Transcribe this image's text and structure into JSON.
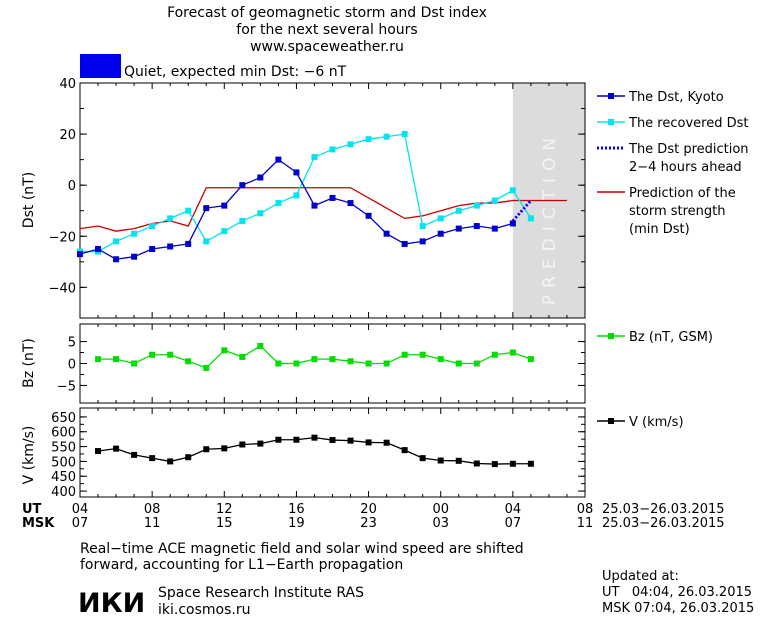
{
  "header": {
    "title_lines": [
      "Forecast of geomagnetic storm and Dst index",
      "for the next several hours",
      "www.spaceweather.ru"
    ],
    "status_text": "Quiet, expected min Dst: −6 nT",
    "status_color": "#0000ee"
  },
  "colors": {
    "dst_kyoto": "#0000cc",
    "recovered_dst": "#00e5ee",
    "dst_prediction": "#0000ff",
    "storm_strength": "#cc0000",
    "bz": "#00dd00",
    "v": "#000000",
    "prediction_zone": "#dcdcdc"
  },
  "prediction_label": "PREDICTION",
  "time_axis": {
    "ut_label": "UT",
    "msk_label": "MSK",
    "ut_ticks": [
      "04",
      "08",
      "12",
      "16",
      "20",
      "00",
      "04",
      "08"
    ],
    "msk_ticks": [
      "07",
      "11",
      "15",
      "19",
      "23",
      "03",
      "07",
      "11"
    ],
    "ut_date_range": "25.03−26.03.2015",
    "msk_date_range": "25.03−26.03.2015"
  },
  "footer": {
    "note_line1": "Real−time ACE magnetic field and solar wind speed are shifted",
    "note_line2": "forward, accounting for L1−Earth propagation",
    "logo_text": "ИКИ",
    "institute": "Space Research Institute RAS",
    "site": "iki.cosmos.ru",
    "updated_label": "Updated at:",
    "updated_ut": "UT   04:04, 26.03.2015",
    "updated_msk": "MSK 07:04, 26.03.2015"
  },
  "chart_data": [
    {
      "type": "line",
      "ylabel": "Dst (nT)",
      "ylim": [
        -52,
        40
      ],
      "yticks": [
        40,
        20,
        0,
        -20,
        -40
      ],
      "xlim": [
        4,
        32
      ],
      "prediction_zone": [
        28,
        32
      ],
      "series": [
        {
          "name": "The Dst, Kyoto",
          "marker": "square",
          "x": [
            4,
            5,
            6,
            7,
            8,
            9,
            10,
            11,
            12,
            13,
            14,
            15,
            16,
            17,
            18,
            19,
            20,
            21,
            22,
            23,
            24,
            25,
            26,
            27,
            28
          ],
          "y": [
            -27,
            -25,
            -29,
            -28,
            -25,
            -24,
            -23,
            -9,
            -8,
            0,
            3,
            10,
            5,
            -8,
            -5,
            -7,
            -12,
            -19,
            -23,
            -22,
            -19,
            -17,
            -16,
            -17,
            -15
          ]
        },
        {
          "name": "The recovered Dst",
          "marker": "square",
          "x": [
            4,
            5,
            6,
            7,
            8,
            9,
            10,
            11,
            12,
            13,
            14,
            15,
            16,
            17,
            18,
            19,
            20,
            21,
            22,
            23,
            24,
            25,
            26,
            27,
            28,
            29
          ],
          "y": [
            -26,
            -26,
            -22,
            -19,
            -16,
            -13,
            -10,
            -22,
            -18,
            -14,
            -11,
            -7,
            -4,
            11,
            14,
            16,
            18,
            19,
            20,
            -16,
            -13,
            -10,
            -8,
            -6,
            -2,
            -13
          ]
        },
        {
          "name": "The Dst prediction\n2−4 hours ahead",
          "dashed": true,
          "x": [
            28,
            29
          ],
          "y": [
            -14,
            -6
          ]
        },
        {
          "name": "Prediction of the\nstorm strength\n(min Dst)",
          "x": [
            4,
            5,
            6,
            7,
            8,
            9,
            10,
            11,
            12,
            13,
            14,
            15,
            16,
            17,
            18,
            19,
            20,
            21,
            22,
            23,
            24,
            25,
            26,
            27,
            28,
            29,
            30,
            31
          ],
          "y": [
            -17,
            -16,
            -18,
            -17,
            -15,
            -14,
            -16,
            -1,
            -1,
            -1,
            -1,
            -1,
            -1,
            -1,
            -1,
            -1,
            -5,
            -9,
            -13,
            -12,
            -10,
            -8,
            -7,
            -7,
            -6,
            -6,
            -6,
            -6
          ]
        }
      ]
    },
    {
      "type": "line",
      "ylabel": "Bz (nT)",
      "ylim": [
        -9,
        9
      ],
      "yticks": [
        5,
        0,
        -5
      ],
      "xlim": [
        4,
        32
      ],
      "series": [
        {
          "name": "Bz (nT, GSM)",
          "marker": "square",
          "x": [
            5,
            6,
            7,
            8,
            9,
            10,
            11,
            12,
            13,
            14,
            15,
            16,
            17,
            18,
            19,
            20,
            21,
            22,
            23,
            24,
            25,
            26,
            27,
            28,
            29
          ],
          "y": [
            1,
            1,
            0,
            2,
            2,
            0.5,
            -1,
            3,
            1.5,
            4,
            0,
            0,
            1,
            1,
            0.5,
            0,
            0,
            2,
            2,
            1,
            0,
            0,
            2,
            2.5,
            1
          ]
        }
      ]
    },
    {
      "type": "line",
      "ylabel": "V (km/s)",
      "ylim": [
        380,
        680
      ],
      "yticks": [
        650,
        600,
        550,
        500,
        450,
        400
      ],
      "xlim": [
        4,
        32
      ],
      "series": [
        {
          "name": "V (km/s)",
          "marker": "square",
          "x": [
            5,
            6,
            7,
            8,
            9,
            10,
            11,
            12,
            13,
            14,
            15,
            16,
            17,
            18,
            19,
            20,
            21,
            22,
            23,
            24,
            25,
            26,
            27,
            28,
            29
          ],
          "y": [
            535,
            543,
            522,
            511,
            500,
            514,
            541,
            544,
            557,
            560,
            573,
            573,
            580,
            572,
            570,
            564,
            563,
            538,
            511,
            503,
            502,
            493,
            491,
            492,
            492
          ]
        }
      ]
    }
  ]
}
